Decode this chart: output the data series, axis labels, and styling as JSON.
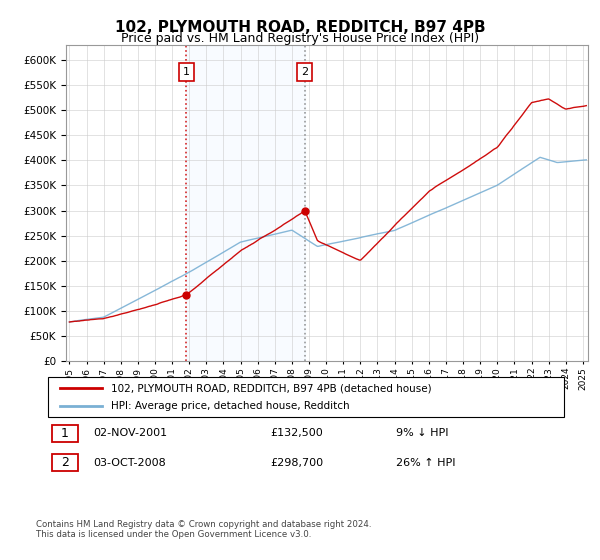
{
  "title": "102, PLYMOUTH ROAD, REDDITCH, B97 4PB",
  "subtitle": "Price paid vs. HM Land Registry's House Price Index (HPI)",
  "legend_line1": "102, PLYMOUTH ROAD, REDDITCH, B97 4PB (detached house)",
  "legend_line2": "HPI: Average price, detached house, Redditch",
  "annotation1_label": "1",
  "annotation1_date": "02-NOV-2001",
  "annotation1_price": "£132,500",
  "annotation1_hpi": "9% ↓ HPI",
  "annotation1_year": 2001.83,
  "annotation1_value": 132500,
  "annotation2_label": "2",
  "annotation2_date": "03-OCT-2008",
  "annotation2_price": "£298,700",
  "annotation2_hpi": "26% ↑ HPI",
  "annotation2_year": 2008.75,
  "annotation2_value": 298700,
  "footer": "Contains HM Land Registry data © Crown copyright and database right 2024.\nThis data is licensed under the Open Government Licence v3.0.",
  "line_color_house": "#cc0000",
  "line_color_hpi": "#7ab0d4",
  "shade_color": "#ddeeff",
  "vline1_color": "#cc0000",
  "vline2_color": "#888888",
  "ylim": [
    0,
    630000
  ],
  "yticks": [
    0,
    50000,
    100000,
    150000,
    200000,
    250000,
    300000,
    350000,
    400000,
    450000,
    500000,
    550000,
    600000
  ],
  "xlim_start": 1994.8,
  "xlim_end": 2025.3
}
